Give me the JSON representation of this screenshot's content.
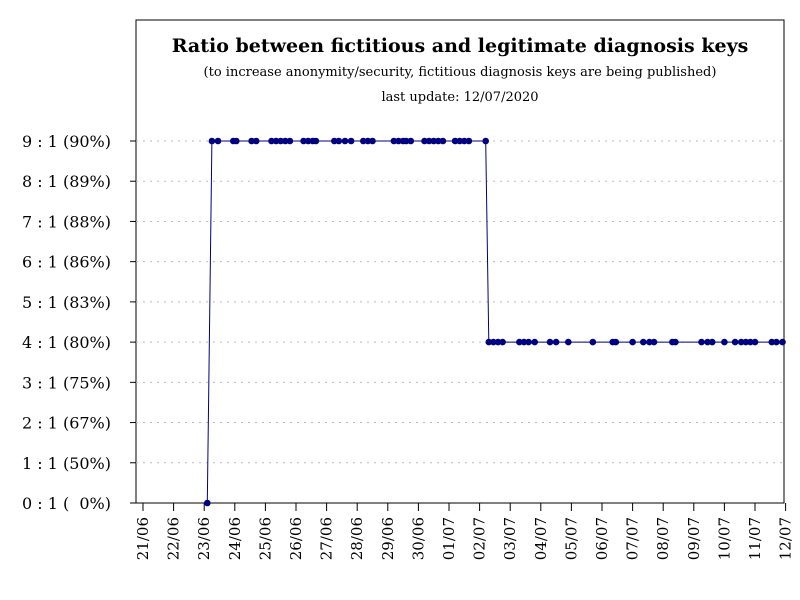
{
  "chart_data": {
    "type": "line",
    "title": "Ratio between fictitious and legitimate diagnosis keys",
    "subtitle": "(to increase anonymity/security, fictitious diagnosis keys are being published)",
    "update_note": "last update: 12/07/2020",
    "xlabel": "",
    "ylabel": "",
    "x_tick_labels": [
      "21/06",
      "22/06",
      "23/06",
      "24/06",
      "25/06",
      "26/06",
      "27/06",
      "28/06",
      "29/06",
      "30/06",
      "01/07",
      "02/07",
      "03/07",
      "04/07",
      "05/07",
      "06/07",
      "07/07",
      "08/07",
      "09/07",
      "10/07",
      "11/07",
      "12/07"
    ],
    "y_tick_labels": [
      "0 : 1 (  0%)",
      "1 : 1 (50%)",
      "2 : 1 (67%)",
      "3 : 1 (75%)",
      "4 : 1 (80%)",
      "5 : 1 (83%)",
      "6 : 1 (86%)",
      "7 : 1 (88%)",
      "8 : 1 (89%)",
      "9 : 1 (90%)"
    ],
    "ylim": [
      0,
      9
    ],
    "grid": "horizontal dotted",
    "line_color": "#000080",
    "series": [
      {
        "points": [
          {
            "x": 2.1,
            "y": 0
          },
          {
            "x": 2.25,
            "y": 9
          },
          {
            "x": 2.45,
            "y": 9
          },
          {
            "x": 2.95,
            "y": 9
          },
          {
            "x": 3.05,
            "y": 9
          },
          {
            "x": 3.55,
            "y": 9
          },
          {
            "x": 3.7,
            "y": 9
          },
          {
            "x": 4.2,
            "y": 9
          },
          {
            "x": 4.35,
            "y": 9
          },
          {
            "x": 4.5,
            "y": 9
          },
          {
            "x": 4.65,
            "y": 9
          },
          {
            "x": 4.8,
            "y": 9
          },
          {
            "x": 5.25,
            "y": 9
          },
          {
            "x": 5.4,
            "y": 9
          },
          {
            "x": 5.55,
            "y": 9
          },
          {
            "x": 5.65,
            "y": 9
          },
          {
            "x": 6.25,
            "y": 9
          },
          {
            "x": 6.4,
            "y": 9
          },
          {
            "x": 6.6,
            "y": 9
          },
          {
            "x": 6.8,
            "y": 9
          },
          {
            "x": 7.2,
            "y": 9
          },
          {
            "x": 7.35,
            "y": 9
          },
          {
            "x": 7.5,
            "y": 9
          },
          {
            "x": 8.2,
            "y": 9
          },
          {
            "x": 8.35,
            "y": 9
          },
          {
            "x": 8.5,
            "y": 9
          },
          {
            "x": 8.6,
            "y": 9
          },
          {
            "x": 8.75,
            "y": 9
          },
          {
            "x": 9.2,
            "y": 9
          },
          {
            "x": 9.35,
            "y": 9
          },
          {
            "x": 9.5,
            "y": 9
          },
          {
            "x": 9.65,
            "y": 9
          },
          {
            "x": 9.8,
            "y": 9
          },
          {
            "x": 10.2,
            "y": 9
          },
          {
            "x": 10.35,
            "y": 9
          },
          {
            "x": 10.5,
            "y": 9
          },
          {
            "x": 10.65,
            "y": 9
          },
          {
            "x": 11.2,
            "y": 9
          },
          {
            "x": 11.3,
            "y": 4
          },
          {
            "x": 11.45,
            "y": 4
          },
          {
            "x": 11.6,
            "y": 4
          },
          {
            "x": 11.75,
            "y": 4
          },
          {
            "x": 12.3,
            "y": 4
          },
          {
            "x": 12.45,
            "y": 4
          },
          {
            "x": 12.6,
            "y": 4
          },
          {
            "x": 12.8,
            "y": 4
          },
          {
            "x": 13.3,
            "y": 4
          },
          {
            "x": 13.5,
            "y": 4
          },
          {
            "x": 13.9,
            "y": 4
          },
          {
            "x": 14.7,
            "y": 4
          },
          {
            "x": 15.35,
            "y": 4
          },
          {
            "x": 15.45,
            "y": 4
          },
          {
            "x": 16.0,
            "y": 4
          },
          {
            "x": 16.35,
            "y": 4
          },
          {
            "x": 16.55,
            "y": 4
          },
          {
            "x": 16.7,
            "y": 4
          },
          {
            "x": 17.3,
            "y": 4
          },
          {
            "x": 17.4,
            "y": 4
          },
          {
            "x": 18.25,
            "y": 4
          },
          {
            "x": 18.45,
            "y": 4
          },
          {
            "x": 18.6,
            "y": 4
          },
          {
            "x": 19.0,
            "y": 4
          },
          {
            "x": 19.35,
            "y": 4
          },
          {
            "x": 19.55,
            "y": 4
          },
          {
            "x": 19.7,
            "y": 4
          },
          {
            "x": 19.85,
            "y": 4
          },
          {
            "x": 20.0,
            "y": 4
          },
          {
            "x": 20.55,
            "y": 4
          },
          {
            "x": 20.7,
            "y": 4
          },
          {
            "x": 20.9,
            "y": 4
          }
        ]
      }
    ]
  }
}
